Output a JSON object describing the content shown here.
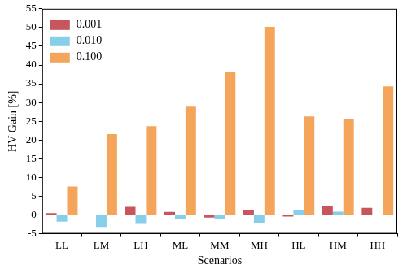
{
  "chart_data": {
    "type": "bar",
    "x_label": "Scenarios",
    "y_label": "HV Gain [%]",
    "categories": [
      "LL",
      "LM",
      "LH",
      "ML",
      "MM",
      "MH",
      "HL",
      "HM",
      "HH"
    ],
    "series": [
      {
        "name": "0.001",
        "color": "#c8545c",
        "values": [
          0.5,
          0.0,
          2.2,
          0.8,
          -0.7,
          1.2,
          -0.4,
          2.4,
          1.9
        ]
      },
      {
        "name": "0.010",
        "color": "#87ceeb",
        "values": [
          -1.8,
          -3.2,
          -2.4,
          -1.0,
          -1.0,
          -2.2,
          1.3,
          0.9,
          0.0
        ]
      },
      {
        "name": "0.100",
        "color": "#f5a55a",
        "values": [
          7.6,
          21.6,
          23.7,
          28.9,
          38.1,
          50.2,
          26.3,
          25.7,
          34.3
        ]
      }
    ],
    "ylim": [
      -5,
      55
    ],
    "yticks": [
      -5,
      0,
      5,
      10,
      15,
      20,
      25,
      30,
      35,
      40,
      45,
      50,
      55
    ],
    "grid": false,
    "legend": "upper left"
  }
}
